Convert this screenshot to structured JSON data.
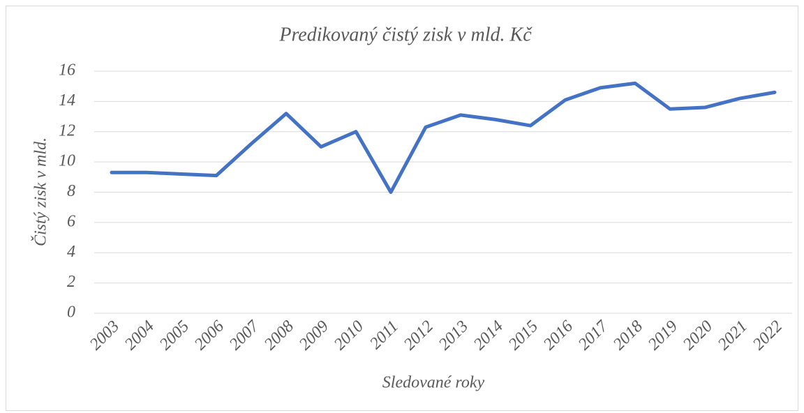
{
  "chart_data": {
    "type": "line",
    "title": "Predikovaný čistý zisk v mld. Kč",
    "x_label": "Sledované roky",
    "y_label": "Čistý zisk v mld.",
    "categories": [
      "2003",
      "2004",
      "2005",
      "2006",
      "2007",
      "2008",
      "2009",
      "2010",
      "2011",
      "2012",
      "2013",
      "2014",
      "2015",
      "2016",
      "2017",
      "2018",
      "2019",
      "2020",
      "2021",
      "2022"
    ],
    "series": [
      {
        "name": "Čistý zisk",
        "color": "#4472c4",
        "values": [
          9.3,
          9.3,
          9.2,
          9.1,
          11.2,
          13.2,
          11.0,
          12.0,
          8.0,
          12.3,
          13.1,
          12.8,
          12.4,
          14.1,
          14.9,
          15.2,
          13.5,
          13.6,
          14.2,
          14.6
        ]
      }
    ],
    "ylim": [
      0,
      16
    ],
    "yticks": [
      0,
      2,
      4,
      6,
      8,
      10,
      12,
      14,
      16
    ],
    "grid": true
  }
}
